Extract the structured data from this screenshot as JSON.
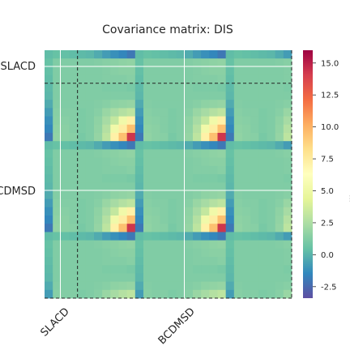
{
  "chart_data": {
    "type": "heatmap",
    "title": "Covariance matrix: DIS",
    "xlabel": "",
    "ylabel": "",
    "x_tick_labels": [
      "SLACD",
      "BCDMSD"
    ],
    "y_tick_labels": [
      "SLACD",
      "BCDMSD"
    ],
    "n_points": 30,
    "blocks": [
      "SLACD",
      "BCDMSD"
    ],
    "block_boundary_index": 3.5,
    "colormap": "Spectral_r",
    "vmin": -3.4,
    "vmax": 16.0,
    "colorbar_ticks": [
      "-2.5",
      "0.0",
      "2.5",
      "5.0",
      "7.5",
      "10.0",
      "12.5",
      "15.0"
    ],
    "colorbar_label_partial": "...",
    "grid": true,
    "structure": {
      "period": 11,
      "profile": [
        0.3,
        0.15,
        0.1,
        0.05,
        -0.05,
        0.0,
        0.2,
        0.55,
        0.95,
        1.2,
        1.45
      ],
      "first_row_values": [
        0.3,
        0.5,
        0.4,
        0.3,
        0.2,
        0.1,
        -0.3,
        -0.8,
        -1.2,
        -1.5,
        -2.0
      ],
      "note": "approximate reconstruction of visible block pattern"
    }
  }
}
